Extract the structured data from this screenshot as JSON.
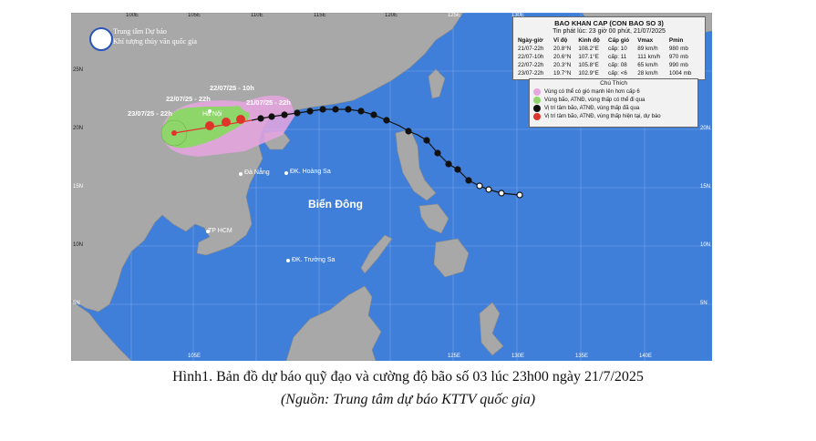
{
  "header": {
    "agency_line1": "Trung tâm Dự báo",
    "agency_line2": "Khí tượng thủy văn quốc gia"
  },
  "bulletin": {
    "title": "BAO KHAN CAP (CON BAO SO 3)",
    "issued": "Tin phát lúc: 23 giờ 00 phút, 21/07/2025",
    "columns": [
      "Ngày-giờ",
      "Vĩ độ",
      "Kinh độ",
      "Cấp gió",
      "Vmax",
      "Pmin"
    ],
    "rows": [
      [
        "21/07-22h",
        "20.8°N",
        "108.2°E",
        "cấp: 10",
        "89 km/h",
        "980 mb"
      ],
      [
        "22/07-10h",
        "20.6°N",
        "107.1°E",
        "cấp: 11",
        "111 km/h",
        "970 mb"
      ],
      [
        "22/07-22h",
        "20.3°N",
        "105.8°E",
        "cấp: 08",
        "65 km/h",
        "990 mb"
      ],
      [
        "23/07-22h",
        "19.7°N",
        "102.9°E",
        "cấp: <6",
        "28 km/h",
        "1004 mb"
      ]
    ]
  },
  "legend": {
    "title": "Chú Thích",
    "items": [
      {
        "text": "Vùng có thể có gió mạnh lên hơn cấp 6",
        "color": "#e7a6e0"
      },
      {
        "text": "Vùng bão, ATNĐ, vùng thấp có thể đi qua",
        "color": "#8fd66a"
      },
      {
        "text": "Vị trí tâm bão, ATNĐ, vùng thấp đã qua",
        "color": "#111111"
      },
      {
        "text": "Vị trí tâm bão, ATNĐ, vùng thấp hiện tại, dự báo",
        "color": "#e0342b"
      }
    ]
  },
  "forecast_labels": {
    "p0": "21/07/25 - 22h",
    "p1": "22/07/25 - 10h",
    "p2": "22/07/25 - 22h",
    "p3": "23/07/25 - 22h"
  },
  "places": {
    "hanoi": "Hà Nội",
    "danang": "Đà Nẵng",
    "hoangsa": "ĐK. Hoàng Sa",
    "truongsa": "ĐK. Trường Sa",
    "hcm": "TP HCM",
    "sea": "Biển Đông"
  },
  "grid": {
    "lon_labels": [
      "100E",
      "105E",
      "110E",
      "115E",
      "120E",
      "125E",
      "130E",
      "135E",
      "140E"
    ],
    "lat_labels": [
      "25N",
      "20N",
      "15N",
      "10N",
      "5N"
    ]
  },
  "colors": {
    "sea": "#3f7fda",
    "land": "#a8a8a8",
    "past_track": "#111111",
    "forecast_center": "#e0342b",
    "strong_wind_zone": "#e7a6e0",
    "cone": "#8fd66a"
  },
  "caption": {
    "line1": "Hình1. Bản đồ dự báo quỹ đạo và cường độ bão số 03 lúc 23h00 ngày 21/7/2025",
    "line2": "(Nguồn: Trung tâm dự báo KTTV quốc gia)"
  }
}
